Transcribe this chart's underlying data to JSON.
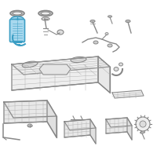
{
  "background_color": "#f5f5f5",
  "fig_width": 2.0,
  "fig_height": 2.0,
  "dpi": 100,
  "highlight_color": "#3b9ec4",
  "line_color": "#888888",
  "dark_line": "#555555",
  "light_line": "#aaaaaa",
  "bg_white": "#ffffff"
}
